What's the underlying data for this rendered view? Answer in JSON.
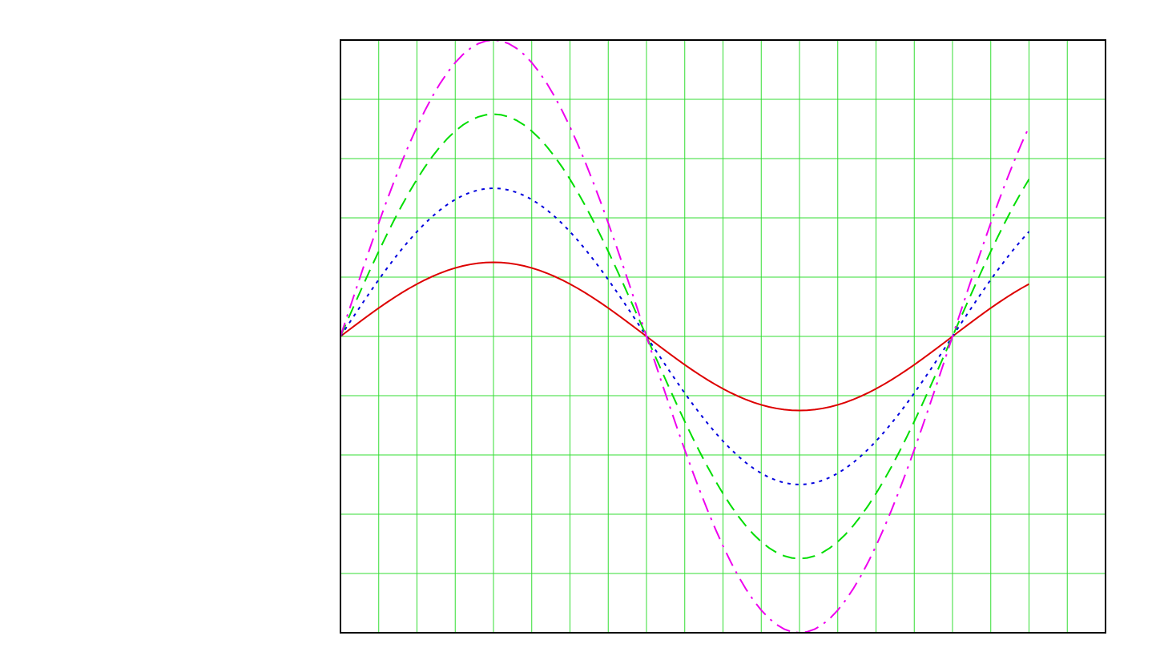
{
  "chart_data": {
    "type": "line",
    "title": "",
    "xlabel": "",
    "ylabel": "",
    "xlim": [
      0,
      20
    ],
    "ylim": [
      -5,
      5
    ],
    "x_major_step": 1,
    "y_major_step": 1,
    "grid": true,
    "legend": "none",
    "tick_labels_shown": false,
    "colors": {
      "grid": "#33dd33",
      "frame": "#000000",
      "background": "#ffffff"
    },
    "series": [
      {
        "amplitude": 1.25,
        "color": "#dd0000",
        "dash": "solid",
        "x_start": 0,
        "x_end": 18,
        "samples": 91,
        "period": 16
      },
      {
        "amplitude": 2.5,
        "color": "#0000dd",
        "dash": "dotted",
        "x_start": 0,
        "x_end": 18,
        "samples": 91,
        "period": 16
      },
      {
        "amplitude": 3.75,
        "color": "#00dd00",
        "dash": "dashed",
        "x_start": 0,
        "x_end": 18,
        "samples": 91,
        "period": 16
      },
      {
        "amplitude": 5.0,
        "color": "#ee00ee",
        "dash": "dashdot",
        "x_start": 0,
        "x_end": 18,
        "samples": 91,
        "period": 16
      }
    ]
  }
}
